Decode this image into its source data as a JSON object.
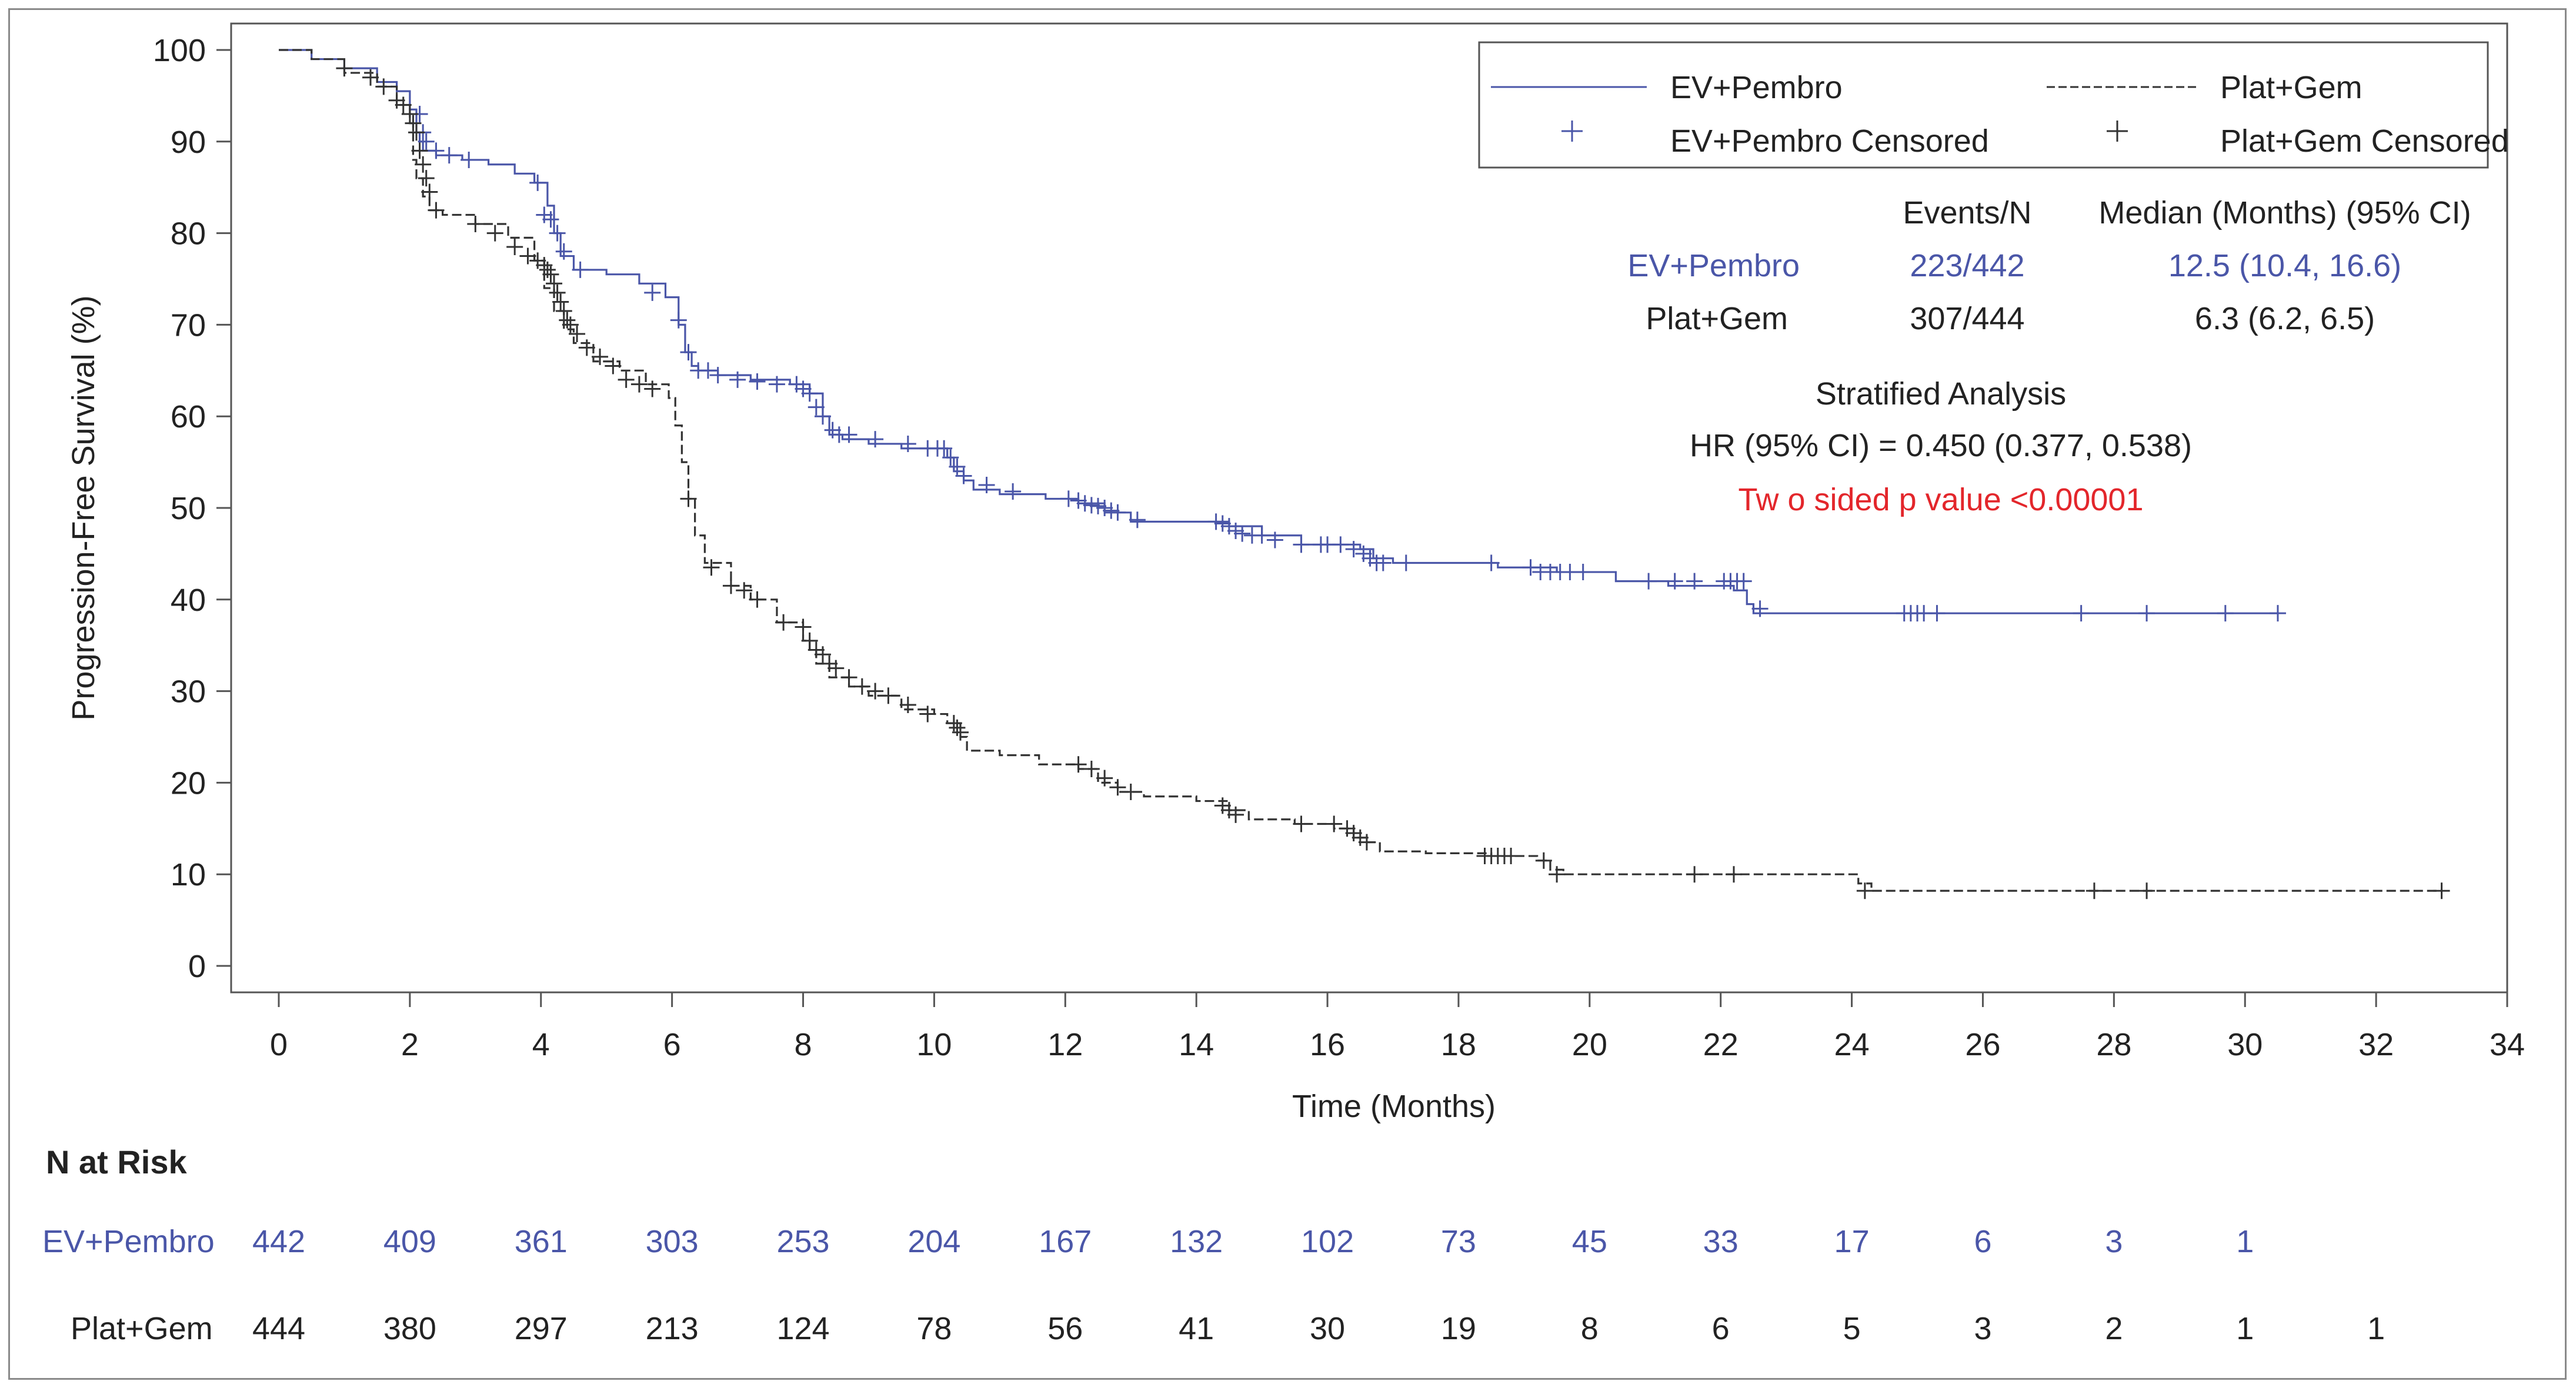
{
  "chart_data": {
    "type": "line",
    "subtype": "kaplan-meier",
    "ylabel": "Progression-Free Survival (%)",
    "xlabel": "Time (Months)",
    "xlim": [
      0,
      34
    ],
    "ylim": [
      0,
      100
    ],
    "x_ticks": [
      0,
      2,
      4,
      6,
      8,
      10,
      12,
      14,
      16,
      18,
      20,
      22,
      24,
      26,
      28,
      30,
      32,
      34
    ],
    "y_ticks": [
      0,
      10,
      20,
      30,
      40,
      50,
      60,
      70,
      80,
      90,
      100
    ],
    "grid": false,
    "legend": {
      "position": "top-right",
      "entries": [
        "EV+Pembro",
        "Plat+Gem",
        "EV+Pembro Censored",
        "Plat+Gem Censored"
      ]
    },
    "stats_table": {
      "header_events": "Events/N",
      "header_median": "Median (Months) (95% CI)",
      "rows": [
        {
          "name": "EV+Pembro",
          "events": "223/442",
          "median": "12.5 (10.4, 16.6)"
        },
        {
          "name": "Plat+Gem",
          "events": "307/444",
          "median": "6.3 (6.2, 6.5)"
        }
      ]
    },
    "annotations": {
      "analysis": "Stratified Analysis",
      "hr": "HR (95% CI) = 0.450 (0.377, 0.538)",
      "pvalue": "Tw o sided p value <0.00001"
    },
    "series": [
      {
        "name": "EV+Pembro",
        "color": "#4a56a8",
        "dash": "solid",
        "x": [
          0,
          0.5,
          1.0,
          1.5,
          1.8,
          2.0,
          2.1,
          2.15,
          2.2,
          2.4,
          2.8,
          3.2,
          3.6,
          3.9,
          4.1,
          4.2,
          4.3,
          4.5,
          5.0,
          5.5,
          5.9,
          6.1,
          6.2,
          6.3,
          6.4,
          6.7,
          7.2,
          7.8,
          8.1,
          8.3,
          8.4,
          8.6,
          9.0,
          9.5,
          10.0,
          10.2,
          10.3,
          10.45,
          10.6,
          11.0,
          11.7,
          12.2,
          12.6,
          13.0,
          13.7,
          14.5,
          15.0,
          15.6,
          16.1,
          16.5,
          16.7,
          17.0,
          17.6,
          18.6,
          19.5,
          20.4,
          21.2,
          22.2,
          22.4,
          22.5,
          23.0,
          30.5
        ],
        "y": [
          100,
          99,
          98,
          96.5,
          95.5,
          93.5,
          91,
          90,
          89,
          88.5,
          88,
          87.5,
          86.5,
          85.5,
          83,
          80,
          77.5,
          76,
          75.5,
          74.5,
          73,
          70,
          67,
          65.5,
          65,
          64.5,
          64,
          63.5,
          62.5,
          60,
          58,
          57.5,
          57,
          56.5,
          56.5,
          55.5,
          54,
          53,
          52,
          51.5,
          51,
          50.5,
          49.5,
          48.5,
          48.5,
          48,
          47,
          46,
          46,
          45.5,
          44.5,
          44,
          44,
          43.5,
          43,
          42,
          41.5,
          41,
          39.5,
          38.5,
          38.5,
          38.5
        ]
      },
      {
        "name": "Plat+Gem",
        "color": "#333333",
        "dash": "dashed",
        "x": [
          0,
          0.5,
          1.0,
          1.5,
          1.8,
          2.0,
          2.05,
          2.1,
          2.2,
          2.3,
          2.5,
          3.0,
          3.5,
          3.9,
          4.05,
          4.2,
          4.35,
          4.5,
          4.8,
          5.2,
          5.6,
          5.95,
          6.05,
          6.15,
          6.25,
          6.35,
          6.5,
          6.9,
          7.2,
          7.6,
          8.0,
          8.1,
          8.2,
          8.4,
          8.7,
          9.0,
          9.5,
          10.0,
          10.2,
          10.4,
          10.5,
          11.0,
          11.6,
          12.2,
          12.5,
          12.8,
          13.2,
          14.0,
          14.5,
          14.8,
          15.5,
          16.1,
          16.4,
          16.6,
          16.8,
          17.5,
          18.5,
          19.2,
          19.4,
          19.6,
          20.5,
          22.0,
          24.1,
          24.3,
          33.0
        ],
        "y": [
          100,
          99,
          97.5,
          96,
          94,
          92,
          88,
          86,
          84,
          82.5,
          82,
          81,
          79.5,
          77,
          74,
          71.5,
          69.5,
          68,
          66,
          65,
          63.5,
          62,
          59,
          55,
          51,
          47,
          44,
          41.5,
          40,
          37.5,
          35.5,
          34.5,
          33,
          31.5,
          30.5,
          29.5,
          28,
          27.5,
          26.5,
          25,
          23.5,
          23,
          22,
          21.5,
          20,
          19,
          18.5,
          18,
          17,
          16,
          15.5,
          15,
          14,
          13.5,
          12.5,
          12.3,
          12,
          11.5,
          10.5,
          10,
          10,
          10,
          9,
          8.2,
          8.2
        ]
      },
      {
        "name": "EV+Pembro Censored",
        "color": "#4a56a8",
        "marker": "+",
        "x": [
          2.15,
          2.2,
          2.25,
          2.4,
          2.6,
          2.9,
          3.95,
          4.05,
          4.15,
          4.25,
          4.35,
          4.6,
          5.7,
          6.1,
          6.25,
          6.4,
          6.55,
          6.7,
          7.0,
          7.3,
          7.6,
          7.9,
          8.0,
          8.1,
          8.2,
          8.3,
          8.45,
          8.55,
          8.7,
          9.1,
          9.6,
          9.9,
          10.05,
          10.15,
          10.25,
          10.35,
          10.45,
          10.8,
          11.2,
          12.05,
          12.2,
          12.3,
          12.4,
          12.5,
          12.6,
          12.7,
          12.8,
          13.1,
          14.3,
          14.4,
          14.5,
          14.6,
          14.7,
          14.85,
          15.0,
          15.2,
          15.6,
          15.9,
          16.0,
          16.2,
          16.4,
          16.55,
          16.65,
          16.75,
          16.85,
          17.2,
          18.5,
          19.1,
          19.25,
          19.4,
          19.55,
          19.7,
          19.9,
          20.9,
          21.3,
          21.6,
          22.05,
          22.15,
          22.25,
          22.35,
          22.6,
          24.8,
          24.9,
          25.0,
          25.1,
          25.3,
          27.5,
          28.5,
          29.7,
          30.5
        ],
        "y": [
          93,
          91,
          90,
          89,
          88.5,
          88,
          85.5,
          82,
          81.5,
          80,
          78,
          76,
          73.5,
          70.5,
          67,
          65,
          65,
          64.5,
          64,
          63.8,
          63.5,
          63.5,
          63,
          62.5,
          61,
          60,
          58.5,
          58,
          58,
          57.5,
          57,
          56.5,
          56.5,
          56.5,
          55.5,
          54.5,
          53.5,
          52.5,
          51.8,
          51,
          50.8,
          50.5,
          50.3,
          50.2,
          50,
          49.7,
          49.5,
          48.7,
          48.5,
          48.3,
          48,
          47.5,
          47.2,
          47,
          47,
          46.5,
          46,
          46,
          46,
          46,
          45.5,
          45,
          44.5,
          44,
          44,
          44,
          44,
          43.5,
          43,
          43,
          43,
          43,
          43,
          42,
          42,
          42,
          42,
          42,
          42,
          42,
          39,
          38.5,
          38.5,
          38.5,
          38.5,
          38.5,
          38.5,
          38.5,
          38.5,
          38.5
        ]
      },
      {
        "name": "Plat+Gem Censored",
        "color": "#333333",
        "marker": "+",
        "x": [
          1.0,
          1.4,
          1.6,
          1.8,
          1.9,
          2.0,
          2.05,
          2.1,
          2.15,
          2.2,
          2.25,
          2.3,
          2.4,
          3.0,
          3.3,
          3.6,
          3.8,
          3.95,
          4.05,
          4.1,
          4.15,
          4.2,
          4.25,
          4.3,
          4.35,
          4.4,
          4.45,
          4.55,
          4.7,
          4.9,
          5.1,
          5.3,
          5.5,
          5.7,
          6.25,
          6.6,
          6.9,
          7.1,
          7.3,
          7.7,
          8.0,
          8.1,
          8.2,
          8.3,
          8.4,
          8.5,
          8.7,
          8.9,
          9.1,
          9.3,
          9.6,
          9.9,
          10.3,
          10.35,
          10.4,
          12.2,
          12.4,
          12.6,
          12.8,
          13.0,
          14.4,
          14.5,
          14.6,
          15.6,
          16.1,
          16.3,
          16.4,
          16.5,
          16.6,
          18.4,
          18.5,
          18.6,
          18.7,
          18.8,
          19.3,
          19.5,
          21.6,
          22.2,
          24.2,
          27.7,
          28.5,
          33.0
        ],
        "y": [
          98,
          97,
          96,
          94.5,
          94,
          93,
          92,
          91,
          89,
          87.5,
          86,
          84.5,
          82.5,
          81,
          80,
          78.5,
          77.5,
          77,
          76.5,
          76,
          75.5,
          74.5,
          73.5,
          72.5,
          71.5,
          70.5,
          70,
          69,
          67.5,
          66.5,
          65.5,
          64,
          63.5,
          63,
          51,
          43.5,
          41.5,
          41,
          40,
          37.5,
          37,
          35.5,
          34.5,
          34,
          33,
          32.5,
          31.5,
          30.5,
          30,
          29.5,
          28.5,
          27.5,
          26.5,
          26,
          25.5,
          22,
          21.5,
          20.5,
          19.5,
          19,
          17.5,
          17,
          16.5,
          15.5,
          15.5,
          15,
          14.5,
          14,
          13.5,
          12,
          12,
          12,
          12,
          12,
          11.5,
          10,
          10,
          10,
          8.2,
          8.2,
          8.2,
          8.2
        ]
      }
    ],
    "at_risk": {
      "title": "N at Risk",
      "x": [
        0,
        2,
        4,
        6,
        8,
        10,
        12,
        14,
        16,
        18,
        20,
        22,
        24,
        26,
        28,
        30,
        32
      ],
      "rows": [
        {
          "name": "EV+Pembro",
          "color": "#4a56a8",
          "values": [
            "442",
            "409",
            "361",
            "303",
            "253",
            "204",
            "167",
            "132",
            "102",
            "73",
            "45",
            "33",
            "17",
            "6",
            "3",
            "1"
          ]
        },
        {
          "name": "Plat+Gem",
          "color": "#222222",
          "values": [
            "444",
            "380",
            "297",
            "213",
            "124",
            "78",
            "56",
            "41",
            "30",
            "19",
            "8",
            "6",
            "5",
            "3",
            "2",
            "1",
            "1"
          ]
        }
      ]
    }
  },
  "colors": {
    "ev_pembro": "#4a56a8",
    "plat_gem": "#333333",
    "pvalue": "#e3262b"
  }
}
